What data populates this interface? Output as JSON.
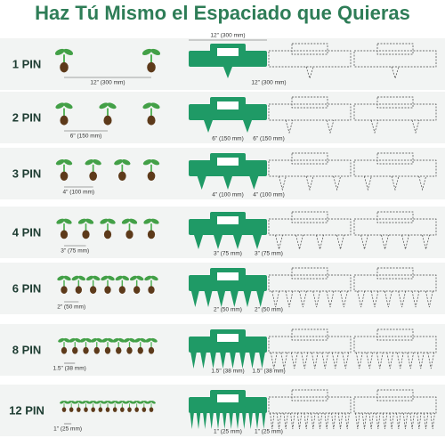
{
  "title": "Haz Tú Mismo el Espaciado que Quieras",
  "rows": [
    {
      "label": "1 PIN",
      "seed_spacing": "12\" (300 mm)",
      "tool_top_spacing": "12\" (300 mm)",
      "outline_spacing": "12\" (300 mm)"
    },
    {
      "label": "2 PIN",
      "seed_spacing": "6\" (150 mm)",
      "tool_spacing": "6\" (150 mm)",
      "outline_spacing": "6\" (150 mm)"
    },
    {
      "label": "3 PIN",
      "seed_spacing": "4\" (100 mm)",
      "tool_spacing": "4\" (100 mm)",
      "outline_spacing": "4\" (100 mm)"
    },
    {
      "label": "4 PIN",
      "seed_spacing": "3\" (75 mm)",
      "tool_spacing": "3\" (75 mm)",
      "outline_spacing": "3\" (75 mm)"
    },
    {
      "label": "6 PIN",
      "seed_spacing": "2\" (50 mm)",
      "tool_spacing": "2\" (50 mm)",
      "outline_spacing": "2\" (50 mm)"
    },
    {
      "label": "8 PIN",
      "seed_spacing": "1.5\" (38 mm)",
      "tool_spacing": "1.5\" (38 mm)",
      "outline_spacing": "1.5\" (38 mm)"
    },
    {
      "label": "12 PIN",
      "seed_spacing": "1\" (25 mm)",
      "tool_spacing": "1\" (25 mm)",
      "outline_spacing": "1\" (25 mm)"
    }
  ]
}
